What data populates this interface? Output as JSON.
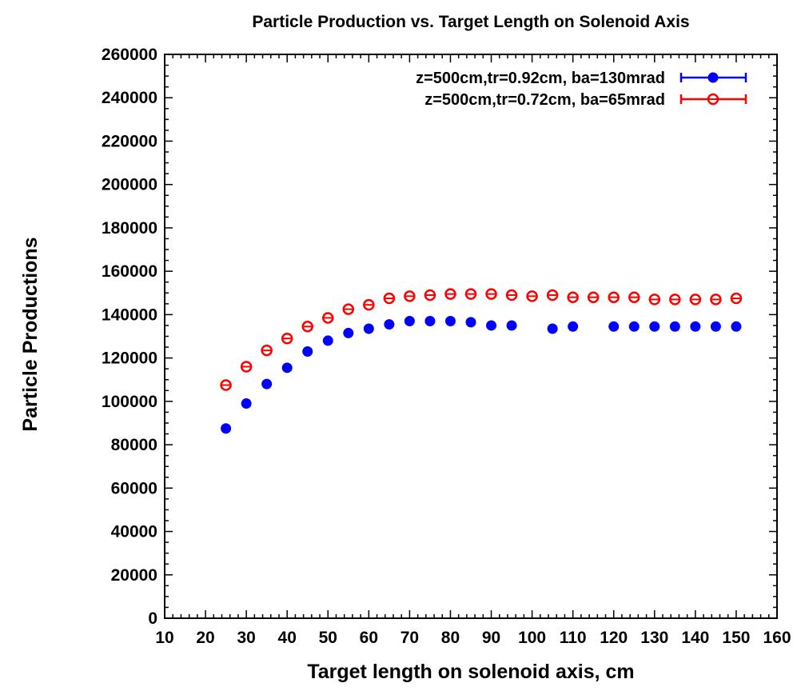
{
  "chart_data": {
    "type": "scatter",
    "title": "Particle Production vs. Target Length on Solenoid Axis",
    "xlabel": "Target length on solenoid axis, cm",
    "ylabel": "Particle Productions",
    "xlim": [
      10,
      160
    ],
    "ylim": [
      0,
      260000
    ],
    "xticks": [
      "10",
      "20",
      "30",
      "40",
      "50",
      "60",
      "70",
      "80",
      "90",
      "100",
      "110",
      "120",
      "130",
      "140",
      "150",
      "160"
    ],
    "yticks": [
      "0",
      "20000",
      "40000",
      "60000",
      "80000",
      "100000",
      "120000",
      "140000",
      "160000",
      "180000",
      "200000",
      "220000",
      "240000",
      "260000"
    ],
    "grid": false,
    "legend_position": "top-right",
    "series": [
      {
        "name": "z=500cm,tr=0.92cm, ba=130mrad",
        "color": "#0000ff",
        "marker": "filled-circle",
        "x": [
          25,
          30,
          35,
          40,
          45,
          50,
          55,
          60,
          65,
          70,
          75,
          80,
          85,
          90,
          95,
          105,
          110,
          120,
          125,
          130,
          135,
          140,
          145,
          150
        ],
        "y": [
          87500,
          99000,
          108000,
          115500,
          123000,
          128000,
          131500,
          133500,
          135500,
          137000,
          137000,
          137000,
          136500,
          135000,
          135000,
          133500,
          134500,
          134500,
          134500,
          134500,
          134500,
          134500,
          134500,
          134500
        ]
      },
      {
        "name": "z=500cm,tr=0.72cm, ba=65mrad",
        "color": "#ff0000",
        "marker": "open-circle",
        "x": [
          25,
          30,
          35,
          40,
          45,
          50,
          55,
          60,
          65,
          70,
          75,
          80,
          85,
          90,
          95,
          100,
          105,
          110,
          115,
          120,
          125,
          130,
          135,
          140,
          145,
          150
        ],
        "y": [
          107500,
          116000,
          123500,
          129000,
          134500,
          138500,
          142500,
          144500,
          147500,
          148500,
          149000,
          149500,
          149500,
          149500,
          149000,
          148500,
          149000,
          148000,
          148000,
          148000,
          148000,
          147000,
          147000,
          147000,
          147000,
          147500
        ]
      }
    ]
  }
}
